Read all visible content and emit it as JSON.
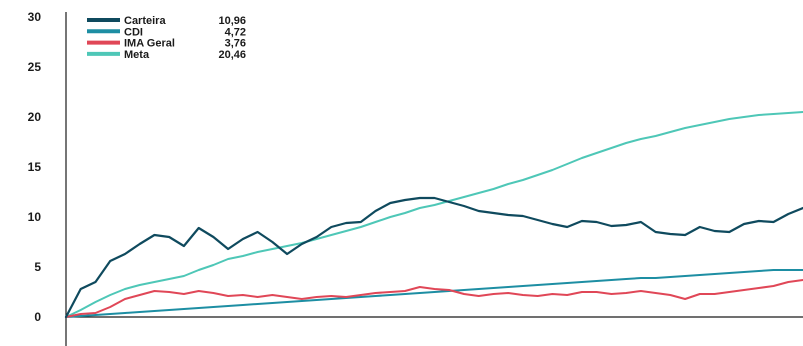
{
  "chart_data": {
    "type": "line",
    "title": "",
    "xlabel": "",
    "ylabel": "",
    "ylim": [
      0,
      30
    ],
    "yticks": [
      "30",
      "25",
      "20",
      "15",
      "10",
      "5",
      "0"
    ],
    "grid": false,
    "legend_position": "top-left",
    "x": [
      0,
      2,
      4,
      6,
      8,
      10,
      12,
      14,
      16,
      18,
      20,
      22,
      24,
      26,
      28,
      30,
      32,
      34,
      36,
      38,
      40,
      42,
      44,
      46,
      48,
      50,
      52,
      54,
      56,
      58,
      60,
      62,
      64,
      66,
      68,
      70,
      72,
      74,
      76,
      78,
      80,
      82,
      84,
      86,
      88,
      90,
      92,
      94,
      96,
      98,
      100
    ],
    "series": [
      {
        "name": "Carteira",
        "legend_value": "10,96",
        "color": "#0f4a5e",
        "values": [
          0.0,
          2.8,
          3.5,
          5.6,
          6.3,
          7.3,
          8.2,
          8.0,
          7.1,
          8.9,
          8.0,
          6.8,
          7.8,
          8.5,
          7.5,
          6.3,
          7.3,
          8.0,
          9.0,
          9.4,
          9.5,
          10.6,
          11.4,
          11.7,
          11.9,
          11.9,
          11.5,
          11.1,
          10.6,
          10.4,
          10.2,
          10.1,
          9.7,
          9.3,
          9.0,
          9.6,
          9.5,
          9.1,
          9.2,
          9.5,
          8.5,
          8.3,
          8.2,
          9.0,
          8.6,
          8.5,
          9.3,
          9.6,
          9.5,
          10.3,
          10.9
        ]
      },
      {
        "name": "CDI",
        "legend_value": "4,72",
        "color": "#1d8ea3",
        "values": [
          0.0,
          0.1,
          0.2,
          0.3,
          0.4,
          0.5,
          0.6,
          0.7,
          0.8,
          0.9,
          1.0,
          1.1,
          1.2,
          1.3,
          1.4,
          1.5,
          1.6,
          1.7,
          1.8,
          1.9,
          2.0,
          2.1,
          2.2,
          2.3,
          2.4,
          2.5,
          2.6,
          2.7,
          2.8,
          2.9,
          3.0,
          3.1,
          3.2,
          3.3,
          3.4,
          3.5,
          3.6,
          3.7,
          3.8,
          3.9,
          3.9,
          4.0,
          4.1,
          4.2,
          4.3,
          4.4,
          4.5,
          4.6,
          4.7,
          4.7,
          4.7
        ]
      },
      {
        "name": "IMA Geral",
        "legend_value": "3,76",
        "color": "#e04757",
        "values": [
          0.0,
          0.3,
          0.4,
          1.0,
          1.8,
          2.2,
          2.6,
          2.5,
          2.3,
          2.6,
          2.4,
          2.1,
          2.2,
          2.0,
          2.2,
          2.0,
          1.8,
          2.0,
          2.1,
          2.0,
          2.2,
          2.4,
          2.5,
          2.6,
          3.0,
          2.8,
          2.7,
          2.3,
          2.1,
          2.3,
          2.4,
          2.2,
          2.1,
          2.3,
          2.2,
          2.5,
          2.5,
          2.3,
          2.4,
          2.6,
          2.4,
          2.2,
          1.8,
          2.3,
          2.3,
          2.5,
          2.7,
          2.9,
          3.1,
          3.5,
          3.7
        ]
      },
      {
        "name": "Meta",
        "legend_value": "20,46",
        "color": "#4ec7b7",
        "values": [
          0.0,
          0.7,
          1.5,
          2.2,
          2.8,
          3.2,
          3.5,
          3.8,
          4.1,
          4.7,
          5.2,
          5.8,
          6.1,
          6.5,
          6.8,
          7.1,
          7.4,
          7.8,
          8.2,
          8.6,
          9.0,
          9.5,
          10.0,
          10.4,
          10.9,
          11.2,
          11.6,
          12.0,
          12.4,
          12.8,
          13.3,
          13.7,
          14.2,
          14.7,
          15.3,
          15.9,
          16.4,
          16.9,
          17.4,
          17.8,
          18.1,
          18.5,
          18.9,
          19.2,
          19.5,
          19.8,
          20.0,
          20.2,
          20.3,
          20.4,
          20.5
        ]
      }
    ]
  }
}
